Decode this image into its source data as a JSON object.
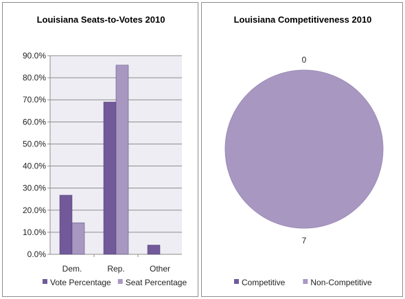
{
  "chart_data": [
    {
      "type": "bar",
      "title": "Louisiana Seats-to-Votes 2010",
      "categories": [
        "Dem.",
        "Rep.",
        "Other"
      ],
      "series": [
        {
          "name": "Vote Percentage",
          "values": [
            26.8,
            69.0,
            4.2
          ],
          "color": "#71599a"
        },
        {
          "name": "Seat Percentage",
          "values": [
            14.3,
            85.7,
            0
          ],
          "color": "#a898c1"
        }
      ],
      "ylim": [
        0,
        90
      ],
      "yticks": [
        "0.0%",
        "10.0%",
        "20.0%",
        "30.0%",
        "40.0%",
        "50.0%",
        "60.0%",
        "70.0%",
        "80.0%",
        "90.0%"
      ],
      "plot_background": "#efedf4",
      "grid": true,
      "legend": "bottom"
    },
    {
      "type": "pie",
      "title": "Louisiana Competitiveness 2010",
      "labels": [
        "Competitive",
        "Non-Competitive"
      ],
      "values": [
        0,
        7
      ],
      "data_labels": [
        "0",
        "7"
      ],
      "colors": [
        "#71599a",
        "#a898c1"
      ],
      "legend": "bottom"
    }
  ]
}
